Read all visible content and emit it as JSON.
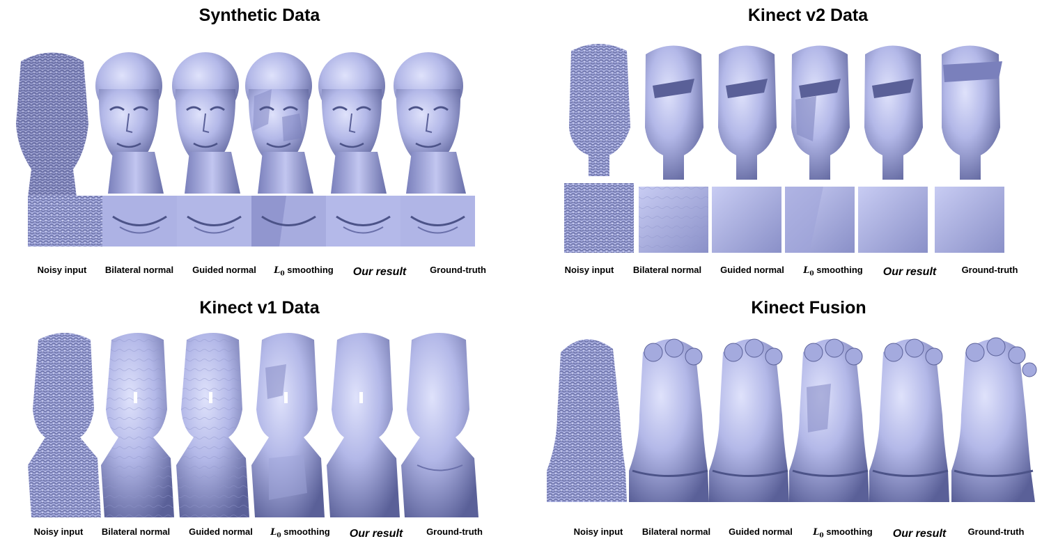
{
  "figure": {
    "panels": [
      {
        "id": "synthetic",
        "title": "Synthetic Data",
        "labels": [
          "Noisy input",
          "Bilateral normal",
          "Guided normal",
          "smoothing",
          "Our result",
          "Ground-truth"
        ],
        "l0_symbol": "L",
        "l0_subscript": "0"
      },
      {
        "id": "kinect-v2",
        "title": "Kinect v2 Data",
        "labels": [
          "Noisy input",
          "Bilateral normal",
          "Guided normal",
          "smoothing",
          "Our result",
          "Ground-truth"
        ],
        "l0_symbol": "L",
        "l0_subscript": "0"
      },
      {
        "id": "kinect-v1",
        "title": "Kinect v1 Data",
        "labels": [
          "Noisy input",
          "Bilateral normal",
          "Guided normal",
          "smoothing",
          "Our result",
          "Ground-truth"
        ],
        "l0_symbol": "L",
        "l0_subscript": "0"
      },
      {
        "id": "kinect-fusion",
        "title": "Kinect Fusion",
        "labels": [
          "Noisy input",
          "Bilateral normal",
          "Guided normal",
          "smoothing",
          "Our result",
          "Ground-truth"
        ],
        "l0_symbol": "L",
        "l0_subscript": "0"
      }
    ],
    "colors": {
      "mesh_light": "#c9cdf2",
      "mesh_mid": "#a4aade",
      "mesh_dark": "#6f76b0",
      "mesh_shadow": "#4c5388"
    }
  }
}
